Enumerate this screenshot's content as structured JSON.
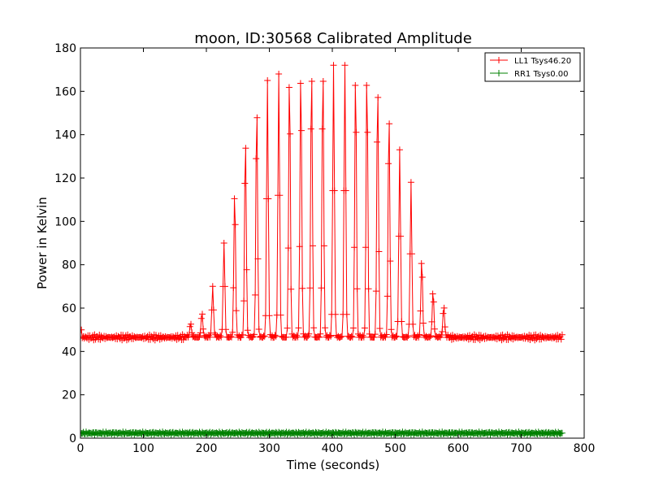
{
  "colors": {
    "background": "#ffffff",
    "axes": "#000000",
    "series_ll1": "#ff0000",
    "series_rr1": "#008000"
  },
  "chart_data": {
    "type": "line",
    "title": "moon, ID:30568 Calibrated Amplitude",
    "xlabel": "Time (seconds)",
    "ylabel": "Power in Kelvin",
    "xlim": [
      0,
      800
    ],
    "ylim": [
      0,
      180
    ],
    "xticks": [
      "0",
      "100",
      "200",
      "300",
      "400",
      "500",
      "600",
      "700",
      "800"
    ],
    "yticks": [
      "0",
      "20",
      "40",
      "60",
      "80",
      "100",
      "120",
      "140",
      "160",
      "180"
    ],
    "grid": false,
    "legend_position": "top-right",
    "marker": "plus",
    "series": [
      {
        "name": "LL1 Tsys46.20",
        "color": "#ff0000",
        "baseline_kelvin": 46.5,
        "sample_spacing_seconds": 1.5,
        "time_range_seconds": [
          0,
          766
        ],
        "peak_times_seconds": [
          175,
          193,
          210,
          228,
          245,
          262,
          280,
          297,
          315,
          332,
          350,
          367,
          385,
          402,
          420,
          437,
          455,
          472,
          490,
          507,
          525,
          542,
          560,
          577
        ],
        "peak_values_kelvin": [
          53,
          58,
          70,
          90,
          115,
          140,
          155,
          165,
          168,
          170,
          172,
          173,
          173,
          172,
          172,
          171,
          171,
          165,
          152,
          133,
          118,
          83,
          68,
          61
        ]
      },
      {
        "name": "RR1 Tsys0.00",
        "color": "#008000",
        "baseline_kelvin": 2.3,
        "sample_spacing_seconds": 1.5,
        "time_range_seconds": [
          0,
          766
        ]
      }
    ]
  }
}
